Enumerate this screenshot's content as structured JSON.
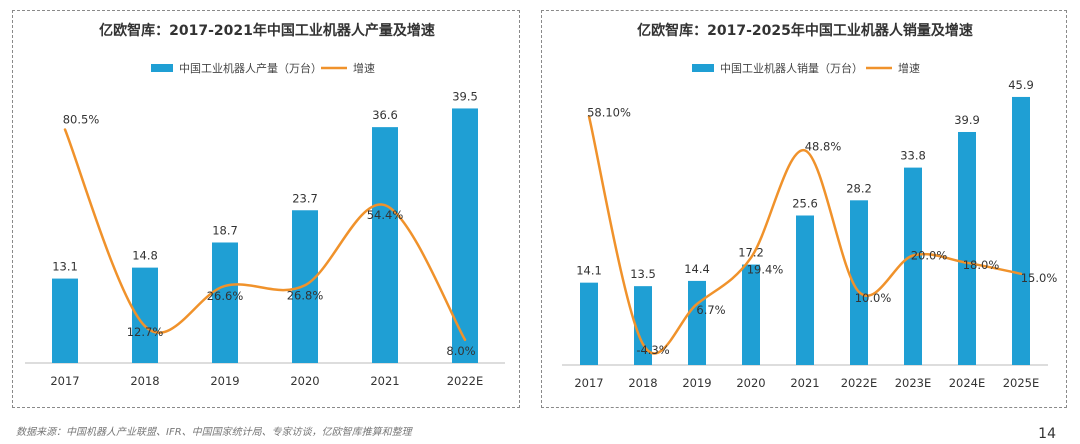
{
  "chart_data": [
    {
      "type": "bar+line",
      "title": "亿欧智库：2017-2021年中国工业机器人产量及增速",
      "categories": [
        "2017",
        "2018",
        "2019",
        "2020",
        "2021",
        "2022E"
      ],
      "series": [
        {
          "name": "中国工业机器人产量（万台）",
          "type": "bar",
          "values": [
            13.1,
            14.8,
            18.7,
            23.7,
            36.6,
            39.5
          ],
          "labels": [
            "13.1",
            "14.8",
            "18.7",
            "23.7",
            "36.6",
            "39.5"
          ]
        },
        {
          "name": "增速",
          "type": "line",
          "values": [
            80.5,
            12.7,
            26.6,
            26.8,
            54.4,
            8.0
          ],
          "labels": [
            "80.5%",
            "12.7%",
            "26.6%",
            "26.8%",
            "54.4%",
            "8.0%"
          ]
        }
      ],
      "bar_ylim": [
        0,
        45
      ],
      "line_ylim": [
        0,
        100
      ],
      "legend": "top-center",
      "grid": false,
      "colors": {
        "bar": "#1f9fd4",
        "line": "#f0922b"
      }
    },
    {
      "type": "bar+line",
      "title": "亿欧智库：2017-2025年中国工业机器人销量及增速",
      "categories": [
        "2017",
        "2018",
        "2019",
        "2020",
        "2021",
        "2022E",
        "2023E",
        "2024E",
        "2025E"
      ],
      "series": [
        {
          "name": "中国工业机器人销量（万台）",
          "type": "bar",
          "values": [
            14.1,
            13.5,
            14.4,
            17.2,
            25.6,
            28.2,
            33.8,
            39.9,
            45.9
          ],
          "labels": [
            "14.1",
            "13.5",
            "14.4",
            "17.2",
            "25.6",
            "28.2",
            "33.8",
            "39.9",
            "45.9"
          ]
        },
        {
          "name": "增速",
          "type": "line",
          "values": [
            58.1,
            -4.3,
            6.7,
            19.4,
            48.8,
            10.0,
            20.0,
            18.0,
            15.0
          ],
          "labels": [
            "58.10%",
            "-4.3%",
            "6.7%",
            "19.4%",
            "48.8%",
            "10.0%",
            "20.0%",
            "18.0%",
            "15.0%"
          ]
        }
      ],
      "bar_ylim": [
        0,
        50
      ],
      "line_ylim": [
        -10,
        70
      ],
      "legend": "top-center",
      "grid": false,
      "colors": {
        "bar": "#1f9fd4",
        "line": "#f0922b"
      }
    }
  ],
  "footer": {
    "source": "数据来源：中国机器人产业联盟、IFR、中国国家统计局、专家访谈，亿欧智库推算和整理",
    "page_number": "14"
  }
}
